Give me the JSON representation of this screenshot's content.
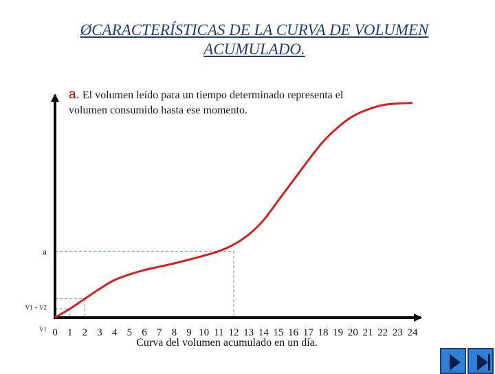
{
  "slide": {
    "title": "ØCARACTERÍSTICAS  DE LA CURVA DE VOLUMEN ACUMULADO.",
    "note_lead": "a.",
    "note_text": " El volumen leído para un tiempo  determinado representa  el volumen consumido hasta ese momento.",
    "caption": "Curva del volumen acumulado en un día."
  },
  "nav": {
    "prev_icon": "play-icon",
    "next_icon": "next-icon"
  },
  "colors": {
    "curve": "#d42020",
    "axis": "#0a0a0a",
    "guides": "#6a8ac8",
    "title": "#1f3f7a"
  },
  "chart_data": {
    "type": "line",
    "title": "",
    "xlabel": "Curva del volumen acumulado en un día.",
    "ylabel": "",
    "x_ticks": [
      "0",
      "1",
      "2",
      "3",
      "4",
      "5",
      "6",
      "7",
      "8",
      "9",
      "10",
      "11",
      "12",
      "13",
      "14",
      "15",
      "16",
      "17",
      "18",
      "19",
      "20",
      "21",
      "22",
      "23",
      "24"
    ],
    "xlim": [
      0,
      24
    ],
    "ylim": [
      0,
      1
    ],
    "y_labels": [
      "a",
      "V1 + V2",
      "V1"
    ],
    "series": [
      {
        "values": [
          [
            0,
            0.0
          ],
          [
            1,
            0.04
          ],
          [
            2,
            0.085
          ],
          [
            3,
            0.13
          ],
          [
            4,
            0.17
          ],
          [
            5,
            0.195
          ],
          [
            6,
            0.215
          ],
          [
            7,
            0.23
          ],
          [
            8,
            0.245
          ],
          [
            9,
            0.262
          ],
          [
            10,
            0.28
          ],
          [
            11,
            0.3
          ],
          [
            12,
            0.33
          ],
          [
            13,
            0.375
          ],
          [
            14,
            0.44
          ],
          [
            15,
            0.53
          ],
          [
            16,
            0.62
          ],
          [
            17,
            0.71
          ],
          [
            18,
            0.795
          ],
          [
            19,
            0.86
          ],
          [
            20,
            0.91
          ],
          [
            21,
            0.94
          ],
          [
            22,
            0.96
          ],
          [
            23,
            0.967
          ],
          [
            24,
            0.97
          ]
        ]
      }
    ],
    "guides": [
      {
        "label": "a",
        "x": 12,
        "y": 0.3
      },
      {
        "label": "V1 + V2",
        "x": 2,
        "y": 0.085
      },
      {
        "label": "V1",
        "x": 1,
        "y": 0.04
      }
    ]
  }
}
